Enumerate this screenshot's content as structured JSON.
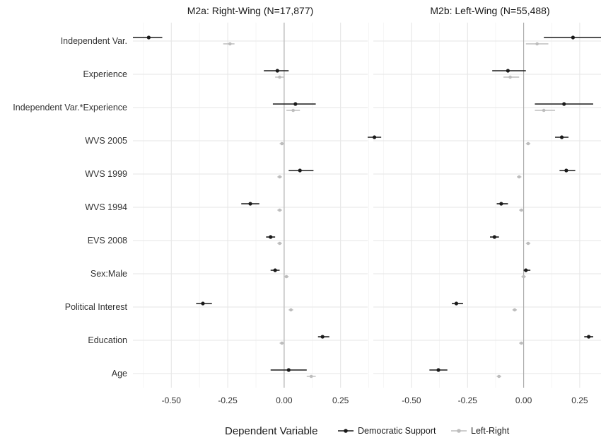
{
  "chart_data": {
    "type": "scatter",
    "variables": [
      "Independent Var.",
      "Experience",
      "Independent Var.*Experience",
      "WVS 2005",
      "WVS 1999",
      "WVS 1994",
      "EVS 2008",
      "Sex:Male",
      "Political Interest",
      "Education",
      "Age"
    ],
    "x_ticks": [
      "-0.50",
      "-0.25",
      "0.00",
      "0.25"
    ],
    "xlim": [
      -0.67,
      0.37
    ],
    "legend": {
      "title": "Dependent Variable",
      "placement": "bottom",
      "entries": [
        "Democratic Support",
        "Left-Right"
      ]
    },
    "colors": {
      "Democratic Support": "#1a1a1a",
      "Left-Right": "#bdbdbd",
      "zero_line": "#aaaaaa"
    },
    "panels": [
      {
        "title": "M2a: Right-Wing (N=17,877)",
        "series": [
          {
            "name": "Democratic Support",
            "points": [
              {
                "est": -0.6,
                "lo": -0.67,
                "hi": -0.54
              },
              {
                "est": -0.03,
                "lo": -0.09,
                "hi": 0.02
              },
              {
                "est": 0.05,
                "lo": -0.05,
                "hi": 0.14
              },
              {
                "est": 0.4,
                "lo": 0.37,
                "hi": 0.43
              },
              {
                "est": 0.07,
                "lo": 0.02,
                "hi": 0.13
              },
              {
                "est": -0.15,
                "lo": -0.19,
                "hi": -0.11
              },
              {
                "est": -0.06,
                "lo": -0.08,
                "hi": -0.04
              },
              {
                "est": -0.04,
                "lo": -0.06,
                "hi": -0.02
              },
              {
                "est": -0.36,
                "lo": -0.39,
                "hi": -0.32
              },
              {
                "est": 0.17,
                "lo": 0.15,
                "hi": 0.2
              },
              {
                "est": 0.02,
                "lo": -0.06,
                "hi": 0.1
              }
            ]
          },
          {
            "name": "Left-Right",
            "points": [
              {
                "est": -0.24,
                "lo": -0.27,
                "hi": -0.22
              },
              {
                "est": -0.02,
                "lo": -0.04,
                "hi": 0.0
              },
              {
                "est": 0.04,
                "lo": 0.01,
                "hi": 0.07
              },
              {
                "est": -0.01,
                "lo": -0.02,
                "hi": 0.0
              },
              {
                "est": -0.02,
                "lo": -0.03,
                "hi": -0.01
              },
              {
                "est": -0.02,
                "lo": -0.03,
                "hi": -0.01
              },
              {
                "est": -0.02,
                "lo": -0.03,
                "hi": -0.01
              },
              {
                "est": 0.01,
                "lo": 0.0,
                "hi": 0.02
              },
              {
                "est": 0.03,
                "lo": 0.02,
                "hi": 0.04
              },
              {
                "est": -0.01,
                "lo": -0.02,
                "hi": 0.0
              },
              {
                "est": 0.12,
                "lo": 0.1,
                "hi": 0.14
              }
            ]
          }
        ]
      },
      {
        "title": "M2b: Left-Wing (N=55,488)",
        "series": [
          {
            "name": "Democratic Support",
            "points": [
              {
                "est": 0.22,
                "lo": 0.09,
                "hi": 0.35
              },
              {
                "est": -0.07,
                "lo": -0.14,
                "hi": 0.01
              },
              {
                "est": 0.18,
                "lo": 0.05,
                "hi": 0.31
              },
              {
                "est": 0.17,
                "lo": 0.14,
                "hi": 0.2
              },
              {
                "est": 0.19,
                "lo": 0.16,
                "hi": 0.23
              },
              {
                "est": -0.1,
                "lo": -0.12,
                "hi": -0.07
              },
              {
                "est": -0.13,
                "lo": -0.15,
                "hi": -0.11
              },
              {
                "est": 0.01,
                "lo": 0.0,
                "hi": 0.03
              },
              {
                "est": -0.3,
                "lo": -0.32,
                "hi": -0.27
              },
              {
                "est": 0.29,
                "lo": 0.27,
                "hi": 0.31
              },
              {
                "est": -0.38,
                "lo": -0.42,
                "hi": -0.34
              }
            ]
          },
          {
            "name": "Left-Right",
            "points": [
              {
                "est": 0.06,
                "lo": 0.01,
                "hi": 0.11
              },
              {
                "est": -0.06,
                "lo": -0.09,
                "hi": -0.02
              },
              {
                "est": 0.09,
                "lo": 0.05,
                "hi": 0.14
              },
              {
                "est": 0.02,
                "lo": 0.01,
                "hi": 0.03
              },
              {
                "est": -0.02,
                "lo": -0.03,
                "hi": -0.01
              },
              {
                "est": -0.01,
                "lo": -0.02,
                "hi": 0.0
              },
              {
                "est": 0.02,
                "lo": 0.01,
                "hi": 0.03
              },
              {
                "est": 0.0,
                "lo": -0.01,
                "hi": 0.01
              },
              {
                "est": -0.04,
                "lo": -0.05,
                "hi": -0.03
              },
              {
                "est": -0.01,
                "lo": -0.02,
                "hi": 0.0
              },
              {
                "est": -0.11,
                "lo": -0.12,
                "hi": -0.1
              }
            ]
          }
        ]
      }
    ]
  }
}
